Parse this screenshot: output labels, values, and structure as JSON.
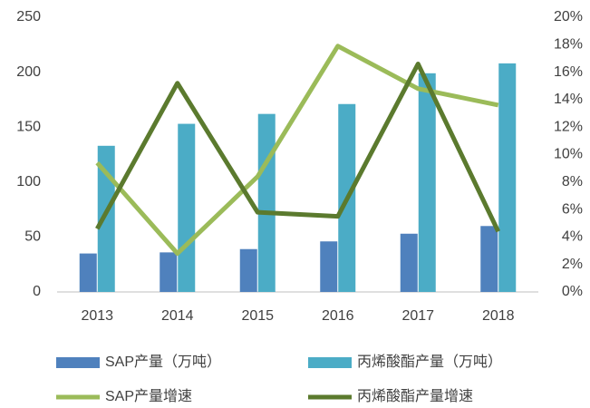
{
  "chart_data": {
    "type": "bar",
    "categories": [
      "2013",
      "2014",
      "2015",
      "2016",
      "2017",
      "2018"
    ],
    "series": [
      {
        "name": "SAP产量（万吨）",
        "type": "bar",
        "color": "#4f81bd",
        "values": [
          35,
          36,
          39,
          46,
          53,
          60
        ]
      },
      {
        "name": "丙烯酸酯产量（万吨）",
        "type": "bar",
        "color": "#4bacc6",
        "values": [
          133,
          153,
          162,
          171,
          199,
          208
        ]
      },
      {
        "name": "SAP产量增速",
        "type": "line",
        "axis": "y2",
        "color": "#9bbb59",
        "values": [
          9.4,
          2.8,
          8.4,
          17.9,
          14.8,
          13.6
        ]
      },
      {
        "name": "丙烯酸酯产量增速",
        "type": "line",
        "axis": "y2",
        "color": "#5b7a2e",
        "values": [
          4.6,
          15.2,
          5.8,
          5.5,
          16.6,
          4.4
        ]
      }
    ],
    "ylim": [
      0,
      250
    ],
    "yticks": [
      0,
      50,
      100,
      150,
      200,
      250
    ],
    "y2lim": [
      0,
      20
    ],
    "y2ticks": [
      {
        "value": 0,
        "label": "0%"
      },
      {
        "value": 2,
        "label": "2%"
      },
      {
        "value": 4,
        "label": "4%"
      },
      {
        "value": 6,
        "label": "6%"
      },
      {
        "value": 8,
        "label": "8%"
      },
      {
        "value": 10,
        "label": "10%"
      },
      {
        "value": 12,
        "label": "12%"
      },
      {
        "value": 14,
        "label": "14%"
      },
      {
        "value": 16,
        "label": "16%"
      },
      {
        "value": 18,
        "label": "18%"
      },
      {
        "value": 20,
        "label": "20%"
      }
    ],
    "grid": false,
    "legend": "bottom"
  }
}
